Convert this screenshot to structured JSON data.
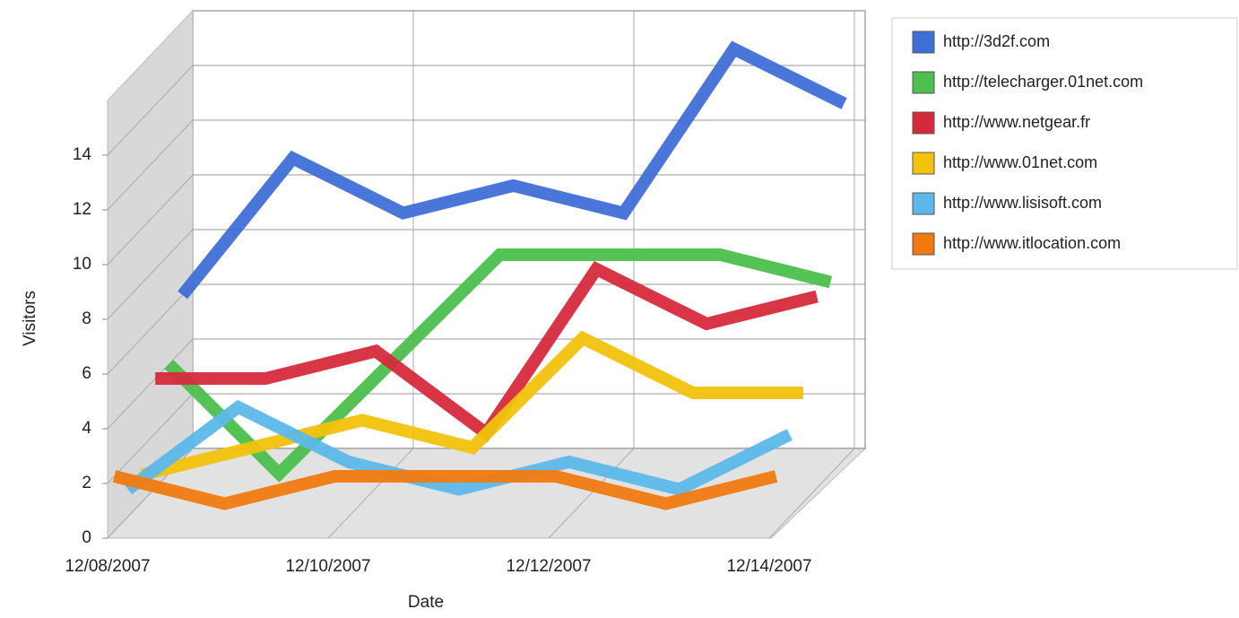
{
  "chart_data": {
    "type": "line3d",
    "xlabel": "Date",
    "ylabel": "Visitors",
    "categories": [
      "12/08/2007",
      null,
      "12/10/2007",
      null,
      "12/12/2007",
      null,
      "12/14/2007"
    ],
    "ylim": [
      0,
      16
    ],
    "yticks": [
      0,
      2,
      4,
      6,
      8,
      10,
      12,
      14
    ],
    "grid": true,
    "series": [
      {
        "name": "http://3d2f.com",
        "color": "#3f6fd6",
        "values": [
          6,
          11,
          9,
          10,
          9,
          15,
          13
        ]
      },
      {
        "name": "http://telecharger.01net.com",
        "color": "#4cbf4c",
        "values": [
          4,
          0,
          4,
          8,
          8,
          8,
          7
        ]
      },
      {
        "name": "http://www.netgear.fr",
        "color": "#d62a3c",
        "values": [
          4,
          4,
          5,
          2,
          8,
          6,
          7
        ]
      },
      {
        "name": "http://www.01net.com",
        "color": "#f2c20c",
        "values": [
          1,
          2,
          3,
          2,
          6,
          4,
          4
        ]
      },
      {
        "name": "http://www.lisisoft.com",
        "color": "#5cb8ea",
        "values": [
          1,
          4,
          2,
          1,
          2,
          1,
          3
        ]
      },
      {
        "name": "http://www.itlocation.com",
        "color": "#f07a10",
        "values": [
          2,
          1,
          2,
          2,
          2,
          1,
          2
        ]
      }
    ]
  }
}
